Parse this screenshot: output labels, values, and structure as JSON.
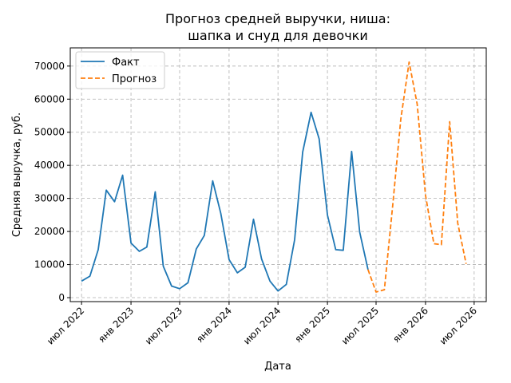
{
  "chart_data": {
    "type": "line",
    "title_lines": [
      "Прогноз средней выручки, ниша:",
      "шапка и снуд для девочки"
    ],
    "xlabel": "Дата",
    "ylabel": "Средняя выручка, руб.",
    "ylim": [
      -1200,
      75500
    ],
    "xlim": [
      "2022-05-20",
      "2026-08-15"
    ],
    "grid": true,
    "legend_position": "top-left",
    "x_ticks": [
      {
        "date": "2022-07-01",
        "label": "июл 2022"
      },
      {
        "date": "2023-01-01",
        "label": "янв 2023"
      },
      {
        "date": "2023-07-01",
        "label": "июл 2023"
      },
      {
        "date": "2024-01-01",
        "label": "янв 2024"
      },
      {
        "date": "2024-07-01",
        "label": "июл 2024"
      },
      {
        "date": "2025-01-01",
        "label": "янв 2025"
      },
      {
        "date": "2025-07-01",
        "label": "июл 2025"
      },
      {
        "date": "2026-01-01",
        "label": "янв 2026"
      },
      {
        "date": "2026-07-01",
        "label": "июл 2026"
      }
    ],
    "y_ticks": [
      {
        "value": 0,
        "label": "0"
      },
      {
        "value": 10000,
        "label": "10000"
      },
      {
        "value": 20000,
        "label": "20000"
      },
      {
        "value": 30000,
        "label": "30000"
      },
      {
        "value": 40000,
        "label": "40000"
      },
      {
        "value": 50000,
        "label": "50000"
      },
      {
        "value": 60000,
        "label": "60000"
      },
      {
        "value": 70000,
        "label": "70000"
      }
    ],
    "series": [
      {
        "name": "Факт",
        "color": "#1f77b4",
        "dash": "solid",
        "x": [
          "2022-07-01",
          "2022-08-01",
          "2022-09-01",
          "2022-10-01",
          "2022-11-01",
          "2022-12-01",
          "2023-01-01",
          "2023-02-01",
          "2023-03-01",
          "2023-04-01",
          "2023-05-01",
          "2023-06-01",
          "2023-07-01",
          "2023-08-01",
          "2023-09-01",
          "2023-10-01",
          "2023-11-01",
          "2023-12-01",
          "2024-01-01",
          "2024-02-01",
          "2024-03-01",
          "2024-04-01",
          "2024-05-01",
          "2024-06-01",
          "2024-07-01",
          "2024-08-01",
          "2024-09-01",
          "2024-10-01",
          "2024-11-01",
          "2024-12-01",
          "2025-01-01",
          "2025-02-01",
          "2025-03-01",
          "2025-04-01",
          "2025-05-01",
          "2025-06-01"
        ],
        "values": [
          5000,
          6500,
          14500,
          32500,
          29000,
          37000,
          16500,
          14000,
          15300,
          32000,
          9500,
          3500,
          2700,
          4500,
          14700,
          18800,
          35300,
          25500,
          11500,
          7500,
          9200,
          23700,
          11700,
          5000,
          2000,
          4000,
          17500,
          44000,
          56000,
          48000,
          25000,
          14500,
          14300,
          44200,
          19800,
          8500
        ]
      },
      {
        "name": "Прогноз",
        "color": "#ff7f0e",
        "dash": "dashed",
        "x": [
          "2025-06-01",
          "2025-07-01",
          "2025-08-01",
          "2025-09-01",
          "2025-10-01",
          "2025-11-01",
          "2025-12-01",
          "2026-01-01",
          "2026-02-01",
          "2026-03-01",
          "2026-04-01",
          "2026-05-01",
          "2026-06-01"
        ],
        "values": [
          8500,
          1700,
          2400,
          28000,
          54000,
          71200,
          58500,
          31000,
          16300,
          16000,
          53200,
          22500,
          10200
        ]
      }
    ]
  }
}
